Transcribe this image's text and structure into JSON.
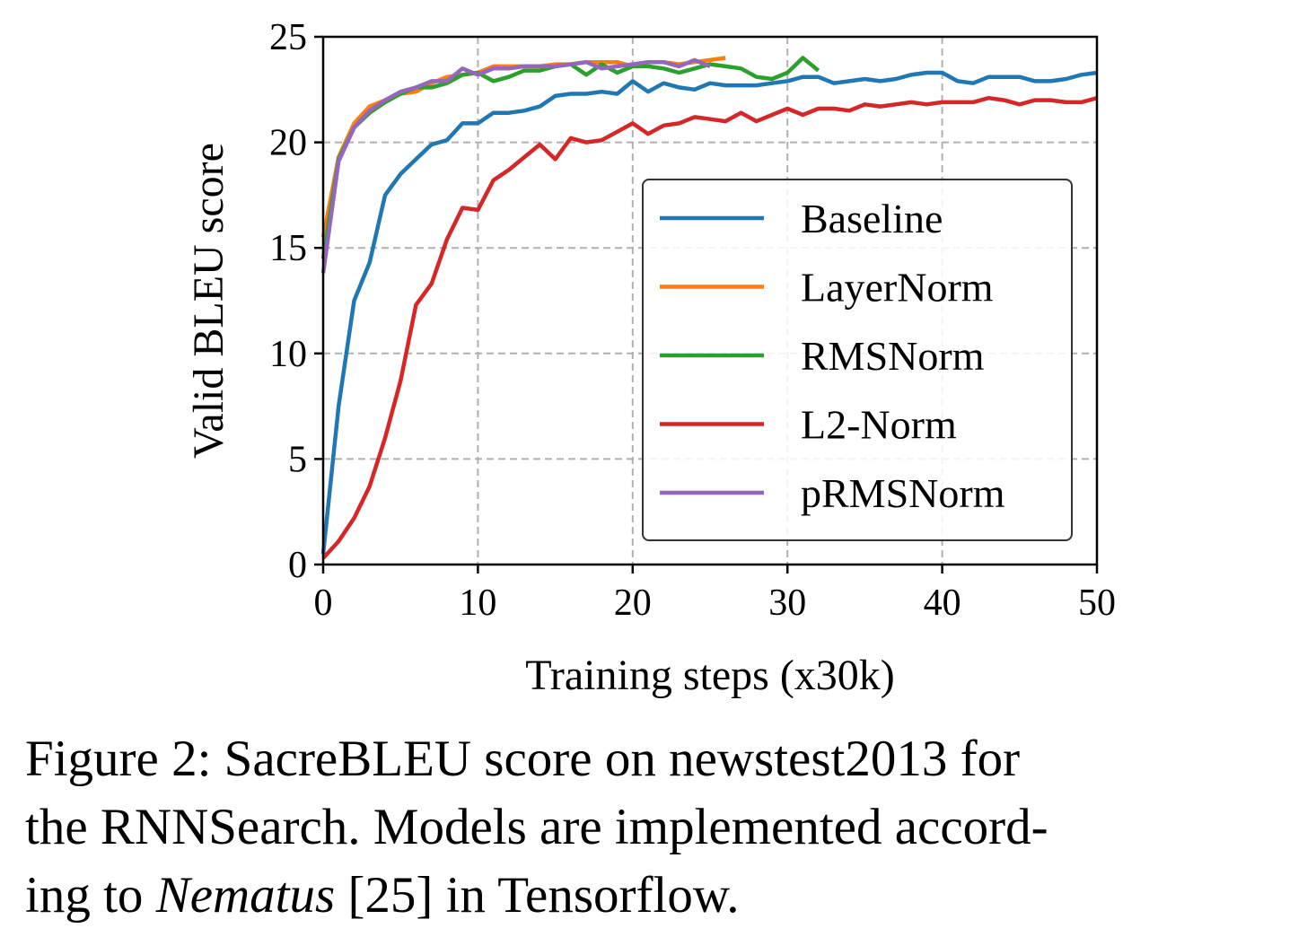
{
  "chart_data": {
    "type": "line",
    "xlabel": "Training steps (x30k)",
    "ylabel": "Valid BLEU score",
    "xlim": [
      0,
      50
    ],
    "ylim": [
      0,
      25
    ],
    "xticks": [
      0,
      10,
      20,
      30,
      40,
      50
    ],
    "yticks": [
      0,
      5,
      10,
      15,
      20,
      25
    ],
    "grid": true,
    "legend_position": "center-right",
    "series": [
      {
        "name": "Baseline",
        "color": "#1f77b4",
        "x": [
          0,
          1,
          2,
          3,
          4,
          5,
          6,
          7,
          8,
          9,
          10,
          11,
          12,
          13,
          14,
          15,
          16,
          17,
          18,
          19,
          20,
          21,
          22,
          23,
          24,
          25,
          26,
          27,
          28,
          29,
          30,
          31,
          32,
          33,
          34,
          35,
          36,
          37,
          38,
          39,
          40,
          41,
          42,
          43,
          44,
          45,
          46,
          47,
          48,
          49,
          50
        ],
        "y": [
          0.5,
          7.5,
          12.5,
          14.3,
          17.5,
          18.5,
          19.2,
          19.9,
          20.1,
          20.9,
          20.9,
          21.4,
          21.4,
          21.5,
          21.7,
          22.2,
          22.3,
          22.3,
          22.4,
          22.3,
          22.9,
          22.4,
          22.8,
          22.6,
          22.5,
          22.8,
          22.7,
          22.7,
          22.7,
          22.8,
          22.9,
          23.1,
          23.1,
          22.8,
          22.9,
          23.0,
          22.9,
          23.0,
          23.2,
          23.3,
          23.3,
          22.9,
          22.8,
          23.1,
          23.1,
          23.1,
          22.9,
          22.9,
          23.0,
          23.2,
          23.3
        ]
      },
      {
        "name": "LayerNorm",
        "color": "#ff7f0e",
        "x": [
          0,
          1,
          2,
          3,
          4,
          5,
          6,
          7,
          8,
          9,
          10,
          11,
          12,
          13,
          14,
          15,
          16,
          17,
          18,
          19,
          20,
          21,
          22,
          23,
          24,
          25,
          26
        ],
        "y": [
          15.5,
          19.3,
          20.9,
          21.7,
          22.0,
          22.3,
          22.4,
          22.8,
          23.1,
          23.2,
          23.3,
          23.6,
          23.6,
          23.6,
          23.6,
          23.7,
          23.7,
          23.8,
          23.8,
          23.8,
          23.6,
          23.8,
          23.8,
          23.7,
          23.8,
          23.9,
          24.0
        ]
      },
      {
        "name": "RMSNorm",
        "color": "#2ca02c",
        "x": [
          0,
          1,
          2,
          3,
          4,
          5,
          6,
          7,
          8,
          9,
          10,
          11,
          12,
          13,
          14,
          15,
          16,
          17,
          18,
          19,
          20,
          21,
          22,
          23,
          24,
          25,
          26,
          27,
          28,
          29,
          30,
          31,
          32
        ],
        "y": [
          14.5,
          19.2,
          20.7,
          21.4,
          21.9,
          22.3,
          22.6,
          22.6,
          22.8,
          23.2,
          23.3,
          22.9,
          23.1,
          23.4,
          23.4,
          23.6,
          23.7,
          23.2,
          23.7,
          23.3,
          23.6,
          23.6,
          23.5,
          23.3,
          23.5,
          23.7,
          23.6,
          23.5,
          23.1,
          23.0,
          23.3,
          24.0,
          23.4
        ]
      },
      {
        "name": "L2-Norm",
        "color": "#d62728",
        "x": [
          0,
          1,
          2,
          3,
          4,
          5,
          6,
          7,
          8,
          9,
          10,
          11,
          12,
          13,
          14,
          15,
          16,
          17,
          18,
          19,
          20,
          21,
          22,
          23,
          24,
          25,
          26,
          27,
          28,
          29,
          30,
          31,
          32,
          33,
          34,
          35,
          36,
          37,
          38,
          39,
          40,
          41,
          42,
          43,
          44,
          45,
          46,
          47,
          48,
          49,
          50
        ],
        "y": [
          0.3,
          1.1,
          2.2,
          3.7,
          6.0,
          8.7,
          12.3,
          13.3,
          15.4,
          16.9,
          16.8,
          18.2,
          18.7,
          19.3,
          19.9,
          19.2,
          20.2,
          20.0,
          20.1,
          20.5,
          20.9,
          20.4,
          20.8,
          20.9,
          21.2,
          21.1,
          21.0,
          21.4,
          21.0,
          21.3,
          21.6,
          21.3,
          21.6,
          21.6,
          21.5,
          21.8,
          21.7,
          21.8,
          21.9,
          21.8,
          21.9,
          21.9,
          21.9,
          22.1,
          22.0,
          21.8,
          22.0,
          22.0,
          21.9,
          21.9,
          22.1
        ]
      },
      {
        "name": "pRMSNorm",
        "color": "#9467bd",
        "x": [
          0,
          1,
          2,
          3,
          4,
          5,
          6,
          7,
          8,
          9,
          10,
          11,
          12,
          13,
          14,
          15,
          16,
          17,
          18,
          19,
          20,
          21,
          22,
          23,
          24,
          25
        ],
        "y": [
          13.8,
          19.1,
          20.7,
          21.5,
          22.0,
          22.4,
          22.6,
          22.9,
          22.9,
          23.5,
          23.2,
          23.5,
          23.5,
          23.6,
          23.6,
          23.6,
          23.7,
          23.8,
          23.5,
          23.6,
          23.7,
          23.8,
          23.8,
          23.6,
          23.9,
          23.6
        ]
      }
    ]
  },
  "caption": {
    "line1": "Figure 2:  SacreBLEU score on newstest2013 for",
    "line2": "the RNNSearch. Models are implemented accord-",
    "line3_pre": "ing to ",
    "line3_italic": "Nematus",
    "line3_post": " [25] in Tensorflow."
  }
}
